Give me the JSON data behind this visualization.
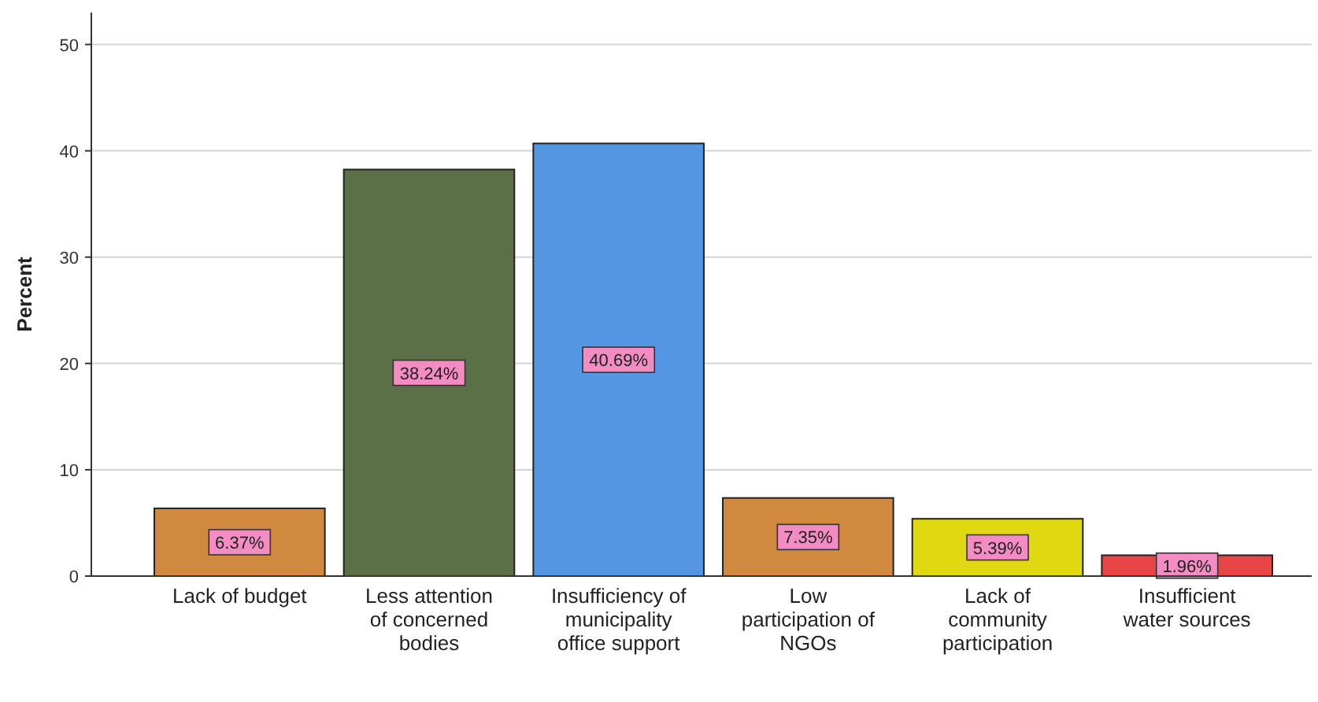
{
  "chart_data": {
    "type": "bar",
    "ylabel": "Percent",
    "categories": [
      "Lack of budget",
      "Less attention of concerned bodies",
      "Insufficiency of municipality office support",
      "Low participation of NGOs",
      "Lack of community participation",
      "Insufficient water sources"
    ],
    "values": [
      6.37,
      38.24,
      40.69,
      7.35,
      5.39,
      1.96
    ],
    "colors": [
      "#d0893f",
      "#5b7046",
      "#5596e3",
      "#d0893f",
      "#e0d810",
      "#e84646"
    ],
    "value_labels": [
      "6.37%",
      "38.24%",
      "40.69%",
      "7.35%",
      "5.39%",
      "1.96%"
    ],
    "ylim": [
      0,
      53
    ],
    "yticks": [
      0,
      10,
      20,
      30,
      40,
      50
    ],
    "grid": "y"
  }
}
